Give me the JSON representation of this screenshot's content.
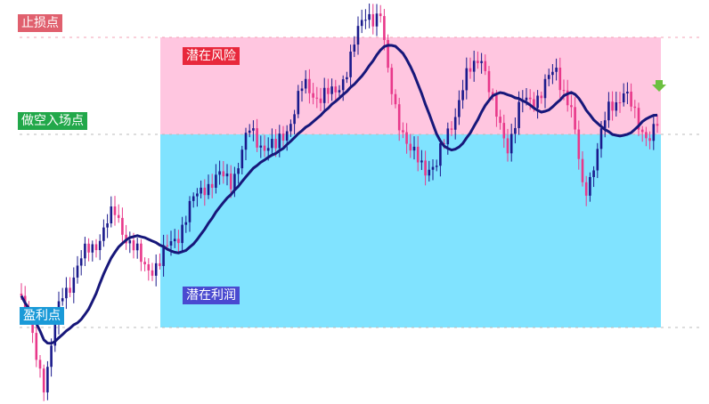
{
  "labels": {
    "stop_loss": "止损点",
    "potential_risk": "潜在风险",
    "short_entry": "做空入场点",
    "potential_profit": "潜在利润",
    "take_profit": "盈利点"
  }
}
